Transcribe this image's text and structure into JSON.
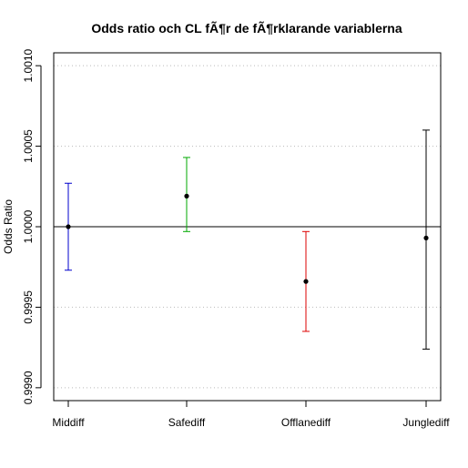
{
  "chart_data": {
    "type": "scatter",
    "subtype": "error-bars",
    "title": "Odds ratio och CL fÃ¶r de fÃ¶rklarande variablerna",
    "xlabel": "",
    "ylabel": "Odds Ratio",
    "ylim": [
      0.9991,
      1.00108
    ],
    "yticks": [
      "0.9990",
      "0.9995",
      "1.0000",
      "1.0005",
      "1.0010"
    ],
    "ytick_values": [
      0.999,
      0.9995,
      1.0,
      1.0005,
      1.001
    ],
    "grid": "horizontal dotted",
    "reference_line": 1.0,
    "categories": [
      "Middiff",
      "Safediff",
      "Offlanediff",
      "Junglediff"
    ],
    "points": [
      {
        "label": "Middiff",
        "estimate": 1.0,
        "lower": 0.99973,
        "upper": 1.00027,
        "color": "#0000cc"
      },
      {
        "label": "Safediff",
        "estimate": 1.00019,
        "lower": 0.99997,
        "upper": 1.00043,
        "color": "#00aa00"
      },
      {
        "label": "Offlanediff",
        "estimate": 0.99966,
        "lower": 0.99935,
        "upper": 0.99997,
        "color": "#dd0000"
      },
      {
        "label": "Junglediff",
        "estimate": 0.99993,
        "lower": 0.99924,
        "upper": 1.0006,
        "color": "#000000"
      }
    ]
  }
}
